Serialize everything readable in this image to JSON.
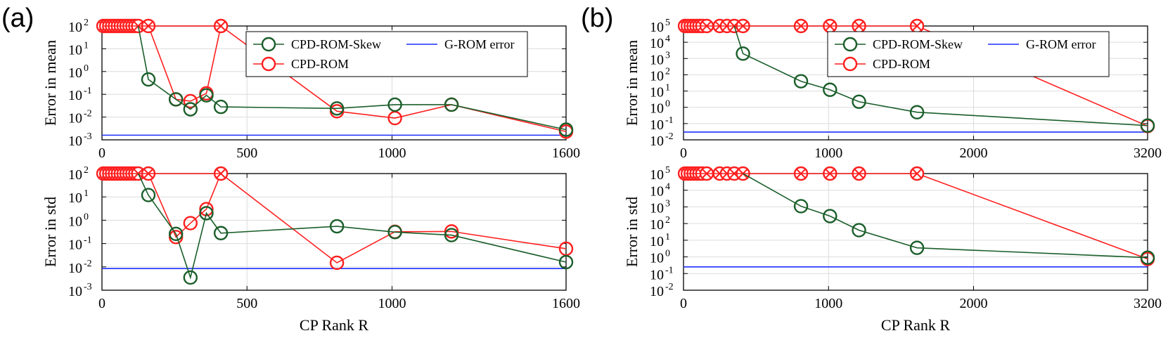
{
  "figure": {
    "panel_labels": [
      "(a)",
      "(b)"
    ]
  },
  "colors": {
    "skew": "#1a5e2a",
    "rom": "#ff1f1f",
    "grom": "#1f2fff"
  },
  "chart_data": [
    {
      "type": "line",
      "panel": "(a)",
      "title": "",
      "xlabel": "",
      "ylabel": "Error in mean",
      "yscale": "log",
      "ylim": [
        0.001,
        100
      ],
      "xlim": [
        0,
        1600
      ],
      "xticks": [
        0,
        500,
        1000,
        1600
      ],
      "yticks": [
        {
          "base": "10",
          "exp": "-3"
        },
        {
          "base": "10",
          "exp": "-2"
        },
        {
          "base": "10",
          "exp": "-1"
        },
        {
          "base": "10",
          "exp": "0"
        },
        {
          "base": "10",
          "exp": "1"
        },
        {
          "base": "10",
          "exp": "2"
        }
      ],
      "legend": {
        "position": "top-right",
        "entries": [
          "CPD-ROM-Skew",
          "G-ROM error",
          "CPD-ROM"
        ]
      },
      "series": [
        {
          "name": "CPD-ROM-Skew",
          "x": [
            125,
            160,
            255,
            305,
            360,
            410,
            810,
            1010,
            1205,
            1600
          ],
          "y": [
            100,
            0.45,
            0.06,
            0.022,
            0.09,
            0.028,
            0.024,
            0.035,
            0.035,
            0.0028
          ]
        },
        {
          "name": "CPD-ROM",
          "x": [
            160,
            255,
            305,
            360,
            410,
            810,
            1010,
            1205,
            1600
          ],
          "y": [
            100,
            0.06,
            0.05,
            0.11,
            100,
            0.018,
            0.009,
            0.035,
            0.0023
          ],
          "diverged_x": [
            5,
            15,
            25,
            35,
            45,
            55,
            65,
            75,
            85,
            95,
            105,
            115,
            125,
            160,
            410
          ]
        },
        {
          "name": "G-ROM error",
          "y": 0.0016
        }
      ]
    },
    {
      "type": "line",
      "panel": "(a)",
      "title": "",
      "xlabel": "CP Rank R",
      "ylabel": "Error in std",
      "yscale": "log",
      "ylim": [
        0.001,
        100
      ],
      "xlim": [
        0,
        1600
      ],
      "xticks": [
        0,
        500,
        1000,
        1600
      ],
      "yticks": [
        {
          "base": "10",
          "exp": "-3"
        },
        {
          "base": "10",
          "exp": "-2"
        },
        {
          "base": "10",
          "exp": "-1"
        },
        {
          "base": "10",
          "exp": "0"
        },
        {
          "base": "10",
          "exp": "1"
        },
        {
          "base": "10",
          "exp": "2"
        }
      ],
      "series": [
        {
          "name": "CPD-ROM-Skew",
          "x": [
            125,
            160,
            255,
            305,
            360,
            410,
            810,
            1010,
            1205,
            1600
          ],
          "y": [
            100,
            12,
            0.26,
            0.0035,
            2.0,
            0.28,
            0.55,
            0.31,
            0.23,
            0.016
          ]
        },
        {
          "name": "CPD-ROM",
          "x": [
            160,
            255,
            305,
            360,
            410,
            810,
            1010,
            1205,
            1600
          ],
          "y": [
            100,
            0.19,
            0.75,
            3.0,
            100,
            0.015,
            0.32,
            0.33,
            0.06
          ],
          "diverged_x": [
            5,
            15,
            25,
            35,
            45,
            55,
            65,
            75,
            85,
            95,
            105,
            115,
            125,
            160,
            410
          ]
        },
        {
          "name": "G-ROM error",
          "y": 0.0085
        }
      ]
    },
    {
      "type": "line",
      "panel": "(b)",
      "title": "",
      "xlabel": "",
      "ylabel": "Error in mean",
      "yscale": "log",
      "ylim": [
        0.01,
        100000
      ],
      "xlim": [
        0,
        3200
      ],
      "xticks": [
        0,
        1000,
        2000,
        3200
      ],
      "yticks": [
        {
          "base": "10",
          "exp": "-2"
        },
        {
          "base": "10",
          "exp": "-1"
        },
        {
          "base": "10",
          "exp": "0"
        },
        {
          "base": "10",
          "exp": "1"
        },
        {
          "base": "10",
          "exp": "2"
        },
        {
          "base": "10",
          "exp": "3"
        },
        {
          "base": "10",
          "exp": "4"
        },
        {
          "base": "10",
          "exp": "5"
        }
      ],
      "legend": {
        "position": "top-right",
        "entries": [
          "CPD-ROM-Skew",
          "G-ROM error",
          "CPD-ROM"
        ]
      },
      "series": [
        {
          "name": "CPD-ROM-Skew",
          "x": [
            350,
            410,
            810,
            1010,
            1210,
            1610,
            3200
          ],
          "y": [
            100000,
            2000,
            40,
            12,
            2.2,
            0.5,
            0.075
          ]
        },
        {
          "name": "CPD-ROM",
          "x": [
            1610,
            3200
          ],
          "y": [
            100000,
            0.07
          ],
          "diverged_x": [
            10,
            30,
            50,
            70,
            90,
            110,
            130,
            160,
            250,
            300,
            350,
            410,
            810,
            1010,
            1210,
            1610
          ]
        },
        {
          "name": "G-ROM error",
          "y": 0.03
        }
      ]
    },
    {
      "type": "line",
      "panel": "(b)",
      "title": "",
      "xlabel": "CP Rank R",
      "ylabel": "Error in std",
      "yscale": "log",
      "ylim": [
        0.01,
        100000
      ],
      "xlim": [
        0,
        3200
      ],
      "xticks": [
        0,
        1000,
        2000,
        3200
      ],
      "yticks": [
        {
          "base": "10",
          "exp": "-2"
        },
        {
          "base": "10",
          "exp": "-1"
        },
        {
          "base": "10",
          "exp": "0"
        },
        {
          "base": "10",
          "exp": "1"
        },
        {
          "base": "10",
          "exp": "2"
        },
        {
          "base": "10",
          "exp": "3"
        },
        {
          "base": "10",
          "exp": "4"
        },
        {
          "base": "10",
          "exp": "5"
        }
      ],
      "series": [
        {
          "name": "CPD-ROM-Skew",
          "x": [
            410,
            810,
            1010,
            1210,
            1610,
            3200
          ],
          "y": [
            100000,
            1100,
            280,
            40,
            3.5,
            0.9
          ]
        },
        {
          "name": "CPD-ROM",
          "x": [
            1610,
            3200
          ],
          "y": [
            100000,
            0.75
          ],
          "diverged_x": [
            10,
            30,
            50,
            70,
            90,
            110,
            130,
            160,
            250,
            300,
            350,
            410,
            810,
            1010,
            1210,
            1610
          ]
        },
        {
          "name": "G-ROM error",
          "y": 0.25
        }
      ]
    }
  ]
}
